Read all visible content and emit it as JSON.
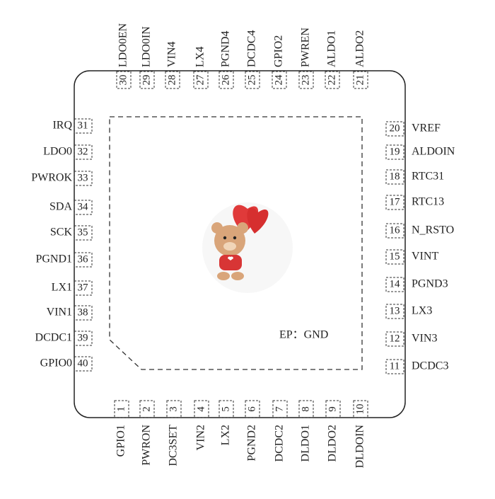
{
  "top_pins": [
    {
      "number": "30",
      "label": "LDO0EN"
    },
    {
      "number": "29",
      "label": "LDO0IN"
    },
    {
      "number": "28",
      "label": "VIN4"
    },
    {
      "number": "27",
      "label": "LX4"
    },
    {
      "number": "26",
      "label": "PGND4"
    },
    {
      "number": "25",
      "label": "DCDC4"
    },
    {
      "number": "24",
      "label": "GPIO2"
    },
    {
      "number": "23",
      "label": "PWREN"
    },
    {
      "number": "22",
      "label": "ALDO1"
    },
    {
      "number": "21",
      "label": "ALDO2"
    }
  ],
  "bottom_pins": [
    {
      "number": "1",
      "label": "GPIO1"
    },
    {
      "number": "2",
      "label": "PWRON"
    },
    {
      "number": "3",
      "label": "DC3SET"
    },
    {
      "number": "4",
      "label": "VIN2"
    },
    {
      "number": "5",
      "label": "LX2"
    },
    {
      "number": "6",
      "label": "PGND2"
    },
    {
      "number": "7",
      "label": "DCDC2"
    },
    {
      "number": "8",
      "label": "DLDO1"
    },
    {
      "number": "9",
      "label": "DLDO2"
    },
    {
      "number": "10",
      "label": "DLDOIN"
    }
  ],
  "left_pins": [
    {
      "number": "31",
      "label": "IRQ"
    },
    {
      "number": "32",
      "label": "LDO0"
    },
    {
      "number": "33",
      "label": "PWROK"
    },
    {
      "number": "34",
      "label": "SDA"
    },
    {
      "number": "35",
      "label": "SCK"
    },
    {
      "number": "36",
      "label": "PGND1"
    },
    {
      "number": "37",
      "label": "LX1"
    },
    {
      "number": "38",
      "label": "VIN1"
    },
    {
      "number": "39",
      "label": "DCDC1"
    },
    {
      "number": "40",
      "label": "GPIO0"
    }
  ],
  "right_pins": [
    {
      "number": "20",
      "label": "VREF"
    },
    {
      "number": "19",
      "label": "ALDOIN"
    },
    {
      "number": "18",
      "label": "RTC31"
    },
    {
      "number": "17",
      "label": "RTC13"
    },
    {
      "number": "16",
      "label": "N_RSTO"
    },
    {
      "number": "15",
      "label": "VINT"
    },
    {
      "number": "14",
      "label": "PGND3"
    },
    {
      "number": "13",
      "label": "LX3"
    },
    {
      "number": "12",
      "label": "VIN3"
    },
    {
      "number": "11",
      "label": "DCDC3"
    }
  ],
  "exposed_pad": "EP：GND"
}
